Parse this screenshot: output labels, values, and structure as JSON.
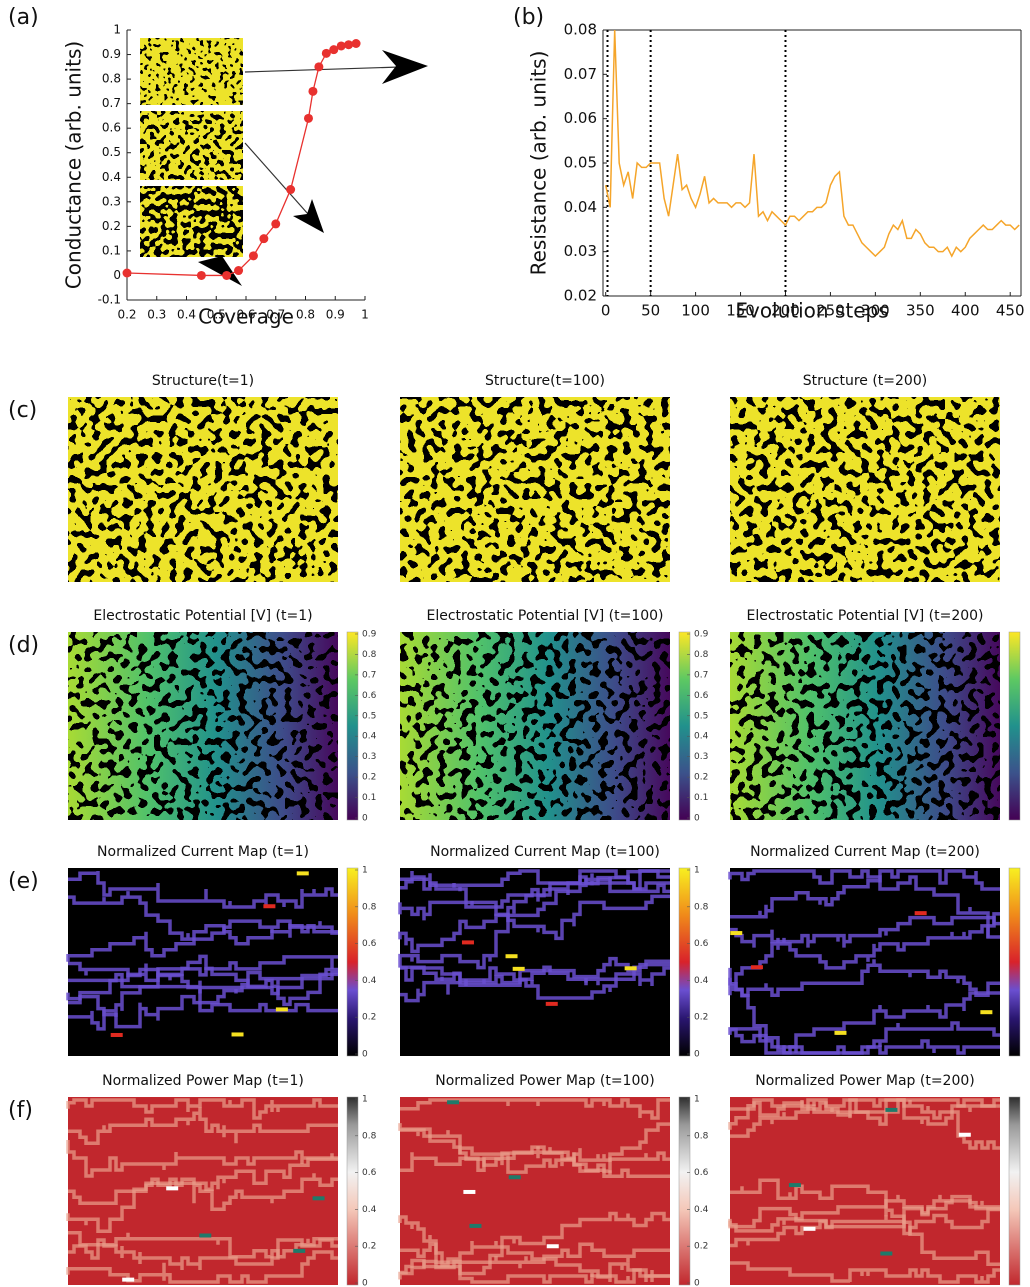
{
  "chart_data": [
    {
      "type": "line",
      "panel_label": "(a)",
      "x_label": "Coverage",
      "y_label": "Conductance (arb. units)",
      "x": [
        0.2,
        0.45,
        0.535,
        0.575,
        0.625,
        0.66,
        0.7,
        0.75,
        0.81,
        0.825,
        0.845,
        0.87,
        0.895,
        0.92,
        0.945,
        0.97
      ],
      "values": [
        0.01,
        0.0,
        0.0,
        0.02,
        0.08,
        0.15,
        0.21,
        0.35,
        0.64,
        0.75,
        0.85,
        0.905,
        0.92,
        0.935,
        0.94,
        0.945
      ],
      "color": "#e8312f",
      "markers": true,
      "xlim": [
        0.2,
        1
      ],
      "ylim": [
        -0.1,
        1
      ],
      "xticks": [
        0.2,
        0.3,
        0.4,
        0.5,
        0.6,
        0.7,
        0.8,
        0.9,
        1
      ],
      "yticks": [
        -0.1,
        0,
        0.1,
        0.2,
        0.3,
        0.4,
        0.5,
        0.6,
        0.7,
        0.8,
        0.9,
        1
      ]
    },
    {
      "type": "line",
      "panel_label": "(b)",
      "x_label": "Evolution steps",
      "y_label": "Resistance (arb. units)",
      "x": [
        0,
        5,
        10,
        15,
        20,
        25,
        30,
        35,
        40,
        45,
        50,
        55,
        60,
        65,
        70,
        75,
        80,
        85,
        90,
        95,
        100,
        105,
        110,
        115,
        120,
        125,
        130,
        135,
        140,
        145,
        150,
        155,
        160,
        165,
        170,
        175,
        180,
        185,
        190,
        195,
        200,
        205,
        210,
        215,
        220,
        225,
        230,
        235,
        240,
        245,
        250,
        255,
        260,
        265,
        270,
        275,
        280,
        285,
        290,
        295,
        300,
        305,
        310,
        315,
        320,
        325,
        330,
        335,
        340,
        345,
        350,
        355,
        360,
        365,
        370,
        375,
        380,
        385,
        390,
        395,
        400,
        405,
        410,
        415,
        420,
        425,
        430,
        435,
        440,
        445,
        450,
        455,
        460
      ],
      "values": [
        0.045,
        0.04,
        0.08,
        0.05,
        0.045,
        0.048,
        0.042,
        0.05,
        0.049,
        0.049,
        0.05,
        0.05,
        0.05,
        0.042,
        0.038,
        0.045,
        0.052,
        0.044,
        0.045,
        0.042,
        0.04,
        0.043,
        0.047,
        0.041,
        0.042,
        0.041,
        0.041,
        0.041,
        0.04,
        0.041,
        0.041,
        0.04,
        0.041,
        0.052,
        0.038,
        0.039,
        0.037,
        0.039,
        0.038,
        0.037,
        0.036,
        0.038,
        0.038,
        0.037,
        0.038,
        0.039,
        0.039,
        0.04,
        0.04,
        0.041,
        0.045,
        0.047,
        0.048,
        0.038,
        0.036,
        0.036,
        0.034,
        0.032,
        0.031,
        0.03,
        0.029,
        0.03,
        0.031,
        0.034,
        0.036,
        0.035,
        0.037,
        0.033,
        0.033,
        0.035,
        0.034,
        0.032,
        0.031,
        0.031,
        0.03,
        0.03,
        0.031,
        0.029,
        0.031,
        0.03,
        0.031,
        0.033,
        0.034,
        0.035,
        0.036,
        0.035,
        0.035,
        0.036,
        0.037,
        0.036,
        0.036,
        0.035,
        0.036
      ],
      "color": "#f5a52a",
      "markers": false,
      "box": true,
      "vlines": [
        2,
        50,
        200
      ],
      "xlim": [
        -3,
        462
      ],
      "ylim": [
        0.02,
        0.08
      ],
      "xticks": [
        0,
        50,
        100,
        150,
        200,
        250,
        300,
        350,
        400,
        450
      ],
      "yticks": [
        0.02,
        0.03,
        0.04,
        0.05,
        0.06,
        0.07,
        0.08
      ]
    },
    {
      "type": "heatmap",
      "panel_label": "(c)",
      "title": "Structure(t=1)",
      "colormap": "structure"
    },
    {
      "type": "heatmap",
      "title": "Structure(t=100)",
      "colormap": "structure"
    },
    {
      "type": "heatmap",
      "title": "Structure (t=200)",
      "colormap": "structure"
    },
    {
      "type": "heatmap",
      "panel_label": "(d)",
      "title": "Electrostatic Potential [V] (t=1)",
      "colormap": "potential",
      "colorbar": true,
      "clim": [
        0,
        0.9
      ],
      "colorbar_ticks": [
        0,
        0.1,
        0.2,
        0.3,
        0.4,
        0.5,
        0.6,
        0.7,
        0.8,
        0.9
      ]
    },
    {
      "type": "heatmap",
      "title": "Electrostatic Potential [V] (t=100)",
      "colormap": "potential",
      "colorbar": true,
      "clim": [
        0,
        0.9
      ],
      "colorbar_ticks": [
        0,
        0.1,
        0.2,
        0.3,
        0.4,
        0.5,
        0.6,
        0.7,
        0.8,
        0.9
      ]
    },
    {
      "type": "heatmap",
      "title": "Electrostatic Potential [V] (t=200)",
      "colormap": "potential",
      "colorbar": true
    },
    {
      "type": "heatmap",
      "panel_label": "(e)",
      "title": "Normalized Current Map (t=1)",
      "colormap": "current",
      "colorbar": true,
      "clim": [
        0,
        1
      ],
      "colorbar_ticks": [
        0,
        0.2,
        0.4,
        0.6,
        0.8,
        1
      ]
    },
    {
      "type": "heatmap",
      "title": "Normalized Current Map (t=100)",
      "colormap": "current",
      "colorbar": true,
      "clim": [
        0,
        1
      ],
      "colorbar_ticks": [
        0,
        0.2,
        0.4,
        0.6,
        0.8,
        1
      ]
    },
    {
      "type": "heatmap",
      "title": "Normalized Current Map (t=200)",
      "colormap": "current",
      "colorbar": true
    },
    {
      "type": "heatmap",
      "panel_label": "(f)",
      "title": "Normalized Power Map (t=1)",
      "colormap": "power",
      "colorbar": true,
      "clim": [
        0,
        1
      ],
      "colorbar_ticks": [
        0,
        0.2,
        0.4,
        0.6,
        0.8,
        1
      ]
    },
    {
      "type": "heatmap",
      "title": "Normalized Power Map (t=100)",
      "colormap": "power",
      "colorbar": true,
      "clim": [
        0,
        1
      ],
      "colorbar_ticks": [
        0,
        0.2,
        0.4,
        0.6,
        0.8,
        1
      ]
    },
    {
      "type": "heatmap",
      "title": "Normalized Power Map (t=200)",
      "colormap": "power",
      "colorbar": true
    }
  ]
}
